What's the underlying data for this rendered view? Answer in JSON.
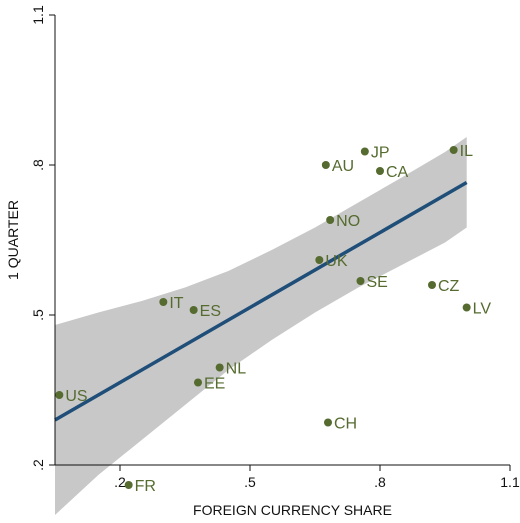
{
  "chart_data": {
    "type": "scatter",
    "xlabel": "FOREIGN CURRENCY SHARE",
    "ylabel": "1 QUARTER",
    "xlim": [
      0.05,
      1.1
    ],
    "ylim": [
      0.2,
      1.1
    ],
    "xticks": [
      0.2,
      0.5,
      0.8,
      1.1
    ],
    "xtick_labels": [
      ".2",
      ".5",
      ".8",
      "1.1"
    ],
    "yticks": [
      0.2,
      0.5,
      0.8,
      1.1
    ],
    "ytick_labels": [
      ".2",
      ".5",
      ".8",
      "1.1"
    ],
    "grid": false,
    "points": [
      {
        "label": "US",
        "x": 0.06,
        "y": 0.34
      },
      {
        "label": "FR",
        "x": 0.22,
        "y": 0.16
      },
      {
        "label": "IT",
        "x": 0.3,
        "y": 0.526
      },
      {
        "label": "ES",
        "x": 0.37,
        "y": 0.51
      },
      {
        "label": "EE",
        "x": 0.38,
        "y": 0.365
      },
      {
        "label": "NL",
        "x": 0.43,
        "y": 0.395
      },
      {
        "label": "AU",
        "x": 0.675,
        "y": 0.8
      },
      {
        "label": "NO",
        "x": 0.685,
        "y": 0.69
      },
      {
        "label": "UK",
        "x": 0.66,
        "y": 0.61
      },
      {
        "label": "JP",
        "x": 0.765,
        "y": 0.827
      },
      {
        "label": "CA",
        "x": 0.8,
        "y": 0.788
      },
      {
        "label": "SE",
        "x": 0.755,
        "y": 0.568
      },
      {
        "label": "CH",
        "x": 0.68,
        "y": 0.285
      },
      {
        "label": "CZ",
        "x": 0.92,
        "y": 0.56
      },
      {
        "label": "IL",
        "x": 0.97,
        "y": 0.83
      },
      {
        "label": "LV",
        "x": 1.0,
        "y": 0.515
      }
    ],
    "fit_line": {
      "x": [
        0.05,
        1.0
      ],
      "y": [
        0.29,
        0.765
      ]
    },
    "confidence_band": {
      "x": [
        0.05,
        0.15,
        0.25,
        0.35,
        0.45,
        0.55,
        0.65,
        0.75,
        0.85,
        0.95,
        1.0
      ],
      "upper": [
        0.48,
        0.505,
        0.528,
        0.555,
        0.588,
        0.63,
        0.675,
        0.725,
        0.775,
        0.826,
        0.856
      ],
      "lower": [
        0.1,
        0.18,
        0.25,
        0.32,
        0.39,
        0.45,
        0.505,
        0.555,
        0.6,
        0.645,
        0.675
      ]
    },
    "colors": {
      "marker": "#556b2f",
      "label": "#556b2f",
      "fit_line": "#1f4e79",
      "band": "#c8c8c8",
      "axis": "#111111"
    }
  }
}
